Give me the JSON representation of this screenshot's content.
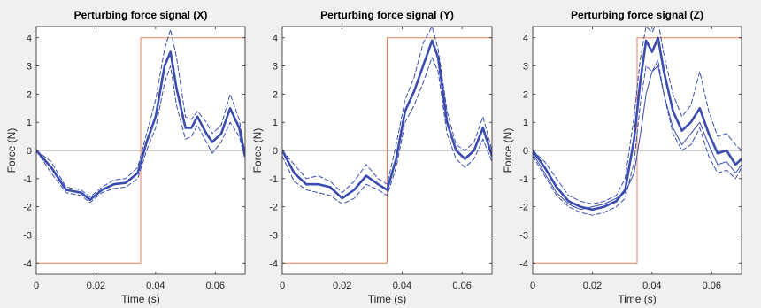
{
  "figure": {
    "background": "#f0f0f0"
  },
  "chart_data": [
    {
      "type": "line",
      "title": "Perturbing force signal (X)",
      "xlabel": "Time (s)",
      "ylabel": "Force (N)",
      "xlim": [
        0,
        0.07
      ],
      "ylim": [
        -4.4,
        4.4
      ],
      "xticks": [
        "0",
        "0.02",
        "0.04",
        "0.06"
      ],
      "xtick_values": [
        0,
        0.02,
        0.04,
        0.06
      ],
      "yticks": [
        "-4",
        "-3",
        "-2",
        "-1",
        "0",
        "1",
        "2",
        "3",
        "4"
      ],
      "ytick_values": [
        -4,
        -3,
        -2,
        -1,
        0,
        1,
        2,
        3,
        4
      ],
      "grid": false,
      "zero_line": true,
      "series": [
        {
          "role": "reference",
          "style": "solid",
          "width": 1,
          "color": "#e5825a",
          "x": [
            0,
            0,
            0.035,
            0.035,
            0.07,
            0.07
          ],
          "y": [
            0,
            -4,
            -4,
            4,
            4,
            0
          ]
        },
        {
          "role": "upper",
          "style": "dashed",
          "width": 1,
          "color": "#3a4cb0",
          "x": [
            0,
            0.005,
            0.01,
            0.015,
            0.018,
            0.022,
            0.026,
            0.03,
            0.034,
            0.037,
            0.04,
            0.043,
            0.045,
            0.047,
            0.05,
            0.052,
            0.054,
            0.057,
            0.059,
            0.062,
            0.065,
            0.068,
            0.07
          ],
          "y": [
            0,
            -0.4,
            -1.3,
            -1.4,
            -1.65,
            -1.3,
            -1.05,
            -1.0,
            -0.6,
            0.6,
            1.8,
            3.6,
            4.3,
            3.3,
            1.2,
            1.1,
            1.4,
            1.0,
            0.6,
            0.9,
            2.0,
            1.1,
            -0.1
          ]
        },
        {
          "role": "mean",
          "style": "solid",
          "width": 2.6,
          "color": "#3a4cb0",
          "x": [
            0,
            0.005,
            0.01,
            0.015,
            0.018,
            0.022,
            0.026,
            0.03,
            0.034,
            0.037,
            0.04,
            0.043,
            0.045,
            0.047,
            0.05,
            0.052,
            0.054,
            0.057,
            0.059,
            0.062,
            0.065,
            0.068,
            0.07
          ],
          "y": [
            0,
            -0.6,
            -1.4,
            -1.5,
            -1.75,
            -1.4,
            -1.2,
            -1.15,
            -0.8,
            0.3,
            1.2,
            3.0,
            3.5,
            2.2,
            0.8,
            0.8,
            1.2,
            0.6,
            0.3,
            0.6,
            1.5,
            0.8,
            -0.2
          ]
        },
        {
          "role": "lower",
          "style": "dashed",
          "width": 1,
          "color": "#3a4cb0",
          "x": [
            0,
            0.005,
            0.01,
            0.015,
            0.018,
            0.022,
            0.026,
            0.03,
            0.034,
            0.037,
            0.04,
            0.043,
            0.045,
            0.047,
            0.05,
            0.052,
            0.054,
            0.057,
            0.059,
            0.062,
            0.065,
            0.068,
            0.07
          ],
          "y": [
            0,
            -0.8,
            -1.5,
            -1.6,
            -1.85,
            -1.5,
            -1.35,
            -1.3,
            -1.0,
            0.0,
            0.8,
            2.4,
            3.0,
            1.6,
            0.4,
            0.5,
            0.9,
            0.3,
            -0.1,
            0.3,
            1.0,
            0.5,
            -0.3
          ]
        }
      ]
    },
    {
      "type": "line",
      "title": "Perturbing force signal (Y)",
      "xlabel": "Time (s)",
      "ylabel": "Force (N)",
      "xlim": [
        0,
        0.07
      ],
      "ylim": [
        -4.4,
        4.4
      ],
      "xticks": [
        "0",
        "0.02",
        "0.04",
        "0.06"
      ],
      "xtick_values": [
        0,
        0.02,
        0.04,
        0.06
      ],
      "yticks": [
        "-4",
        "-3",
        "-2",
        "-1",
        "0",
        "1",
        "2",
        "3",
        "4"
      ],
      "ytick_values": [
        -4,
        -3,
        -2,
        -1,
        0,
        1,
        2,
        3,
        4
      ],
      "grid": false,
      "zero_line": true,
      "series": [
        {
          "role": "reference",
          "style": "solid",
          "width": 1,
          "color": "#e5825a",
          "x": [
            0,
            0,
            0.035,
            0.035,
            0.07,
            0.07
          ],
          "y": [
            0,
            -4,
            -4,
            4,
            4,
            0
          ]
        },
        {
          "role": "upper",
          "style": "dashed",
          "width": 1,
          "color": "#3a4cb0",
          "x": [
            0,
            0.004,
            0.008,
            0.012,
            0.016,
            0.02,
            0.024,
            0.028,
            0.032,
            0.035,
            0.038,
            0.041,
            0.044,
            0.047,
            0.05,
            0.052,
            0.055,
            0.058,
            0.061,
            0.064,
            0.067,
            0.07
          ],
          "y": [
            0.0,
            -0.5,
            -1.0,
            -0.9,
            -1.1,
            -1.5,
            -1.1,
            -0.5,
            -1.0,
            -1.2,
            0.2,
            1.8,
            2.6,
            3.8,
            4.4,
            3.6,
            1.4,
            0.2,
            0.0,
            0.3,
            1.2,
            0.0
          ]
        },
        {
          "role": "mean",
          "style": "solid",
          "width": 2.6,
          "color": "#3a4cb0",
          "x": [
            0,
            0.004,
            0.008,
            0.012,
            0.016,
            0.02,
            0.024,
            0.028,
            0.032,
            0.035,
            0.038,
            0.041,
            0.044,
            0.047,
            0.05,
            0.052,
            0.055,
            0.058,
            0.061,
            0.064,
            0.067,
            0.07
          ],
          "y": [
            0.0,
            -0.8,
            -1.2,
            -1.2,
            -1.3,
            -1.7,
            -1.4,
            -0.9,
            -1.2,
            -1.4,
            -0.3,
            1.4,
            2.1,
            3.0,
            3.9,
            3.3,
            1.0,
            0.0,
            -0.3,
            0.0,
            0.8,
            -0.2
          ]
        },
        {
          "role": "lower",
          "style": "dashed",
          "width": 1,
          "color": "#3a4cb0",
          "x": [
            0,
            0.004,
            0.008,
            0.012,
            0.016,
            0.02,
            0.024,
            0.028,
            0.032,
            0.035,
            0.038,
            0.041,
            0.044,
            0.047,
            0.05,
            0.052,
            0.055,
            0.058,
            0.061,
            0.064,
            0.067,
            0.07
          ],
          "y": [
            -0.2,
            -1.1,
            -1.4,
            -1.5,
            -1.6,
            -1.9,
            -1.7,
            -1.2,
            -1.4,
            -1.6,
            -0.6,
            1.0,
            1.6,
            2.4,
            3.3,
            2.8,
            0.6,
            -0.3,
            -0.6,
            -0.3,
            0.4,
            -0.4
          ]
        }
      ]
    },
    {
      "type": "line",
      "title": "Perturbing force signal (Z)",
      "xlabel": "Time (s)",
      "ylabel": "Force (N)",
      "xlim": [
        0,
        0.07
      ],
      "ylim": [
        -4.4,
        4.4
      ],
      "xticks": [
        "0",
        "0.02",
        "0.04",
        "0.06"
      ],
      "xtick_values": [
        0,
        0.02,
        0.04,
        0.06
      ],
      "yticks": [
        "-4",
        "-3",
        "-2",
        "-1",
        "0",
        "1",
        "2",
        "3",
        "4"
      ],
      "ytick_values": [
        -4,
        -3,
        -2,
        -1,
        0,
        1,
        2,
        3,
        4
      ],
      "grid": false,
      "zero_line": true,
      "series": [
        {
          "role": "reference",
          "style": "solid",
          "width": 1,
          "color": "#e5825a",
          "x": [
            0,
            0,
            0.035,
            0.035,
            0.07,
            0.07
          ],
          "y": [
            0,
            -4,
            -4,
            4,
            4,
            0
          ]
        },
        {
          "role": "upper",
          "style": "dashed",
          "width": 1,
          "color": "#3a4cb0",
          "x": [
            0,
            0.004,
            0.008,
            0.012,
            0.016,
            0.02,
            0.024,
            0.028,
            0.031,
            0.034,
            0.036,
            0.038,
            0.04,
            0.042,
            0.044,
            0.047,
            0.05,
            0.053,
            0.056,
            0.059,
            0.062,
            0.065,
            0.068,
            0.07
          ],
          "y": [
            0.0,
            -0.4,
            -1.0,
            -1.6,
            -1.8,
            -1.9,
            -1.8,
            -1.6,
            -1.0,
            1.2,
            3.2,
            4.4,
            4.2,
            4.6,
            3.4,
            2.0,
            1.2,
            1.6,
            2.8,
            1.4,
            0.5,
            0.6,
            0.2,
            0.0
          ]
        },
        {
          "role": "mean",
          "style": "solid",
          "width": 2.6,
          "color": "#3a4cb0",
          "x": [
            0,
            0.004,
            0.008,
            0.012,
            0.016,
            0.02,
            0.024,
            0.028,
            0.031,
            0.034,
            0.036,
            0.038,
            0.04,
            0.042,
            0.044,
            0.047,
            0.05,
            0.053,
            0.056,
            0.059,
            0.062,
            0.065,
            0.068,
            0.07
          ],
          "y": [
            0.0,
            -0.6,
            -1.3,
            -1.8,
            -2.0,
            -2.1,
            -2.0,
            -1.8,
            -1.4,
            0.4,
            2.4,
            3.9,
            3.5,
            4.0,
            2.8,
            1.4,
            0.7,
            1.0,
            1.5,
            0.6,
            -0.1,
            0.0,
            -0.5,
            -0.3
          ]
        },
        {
          "role": "lower",
          "style": "dashed",
          "width": 1,
          "color": "#3a4cb0",
          "x": [
            0,
            0.004,
            0.008,
            0.012,
            0.016,
            0.02,
            0.024,
            0.028,
            0.031,
            0.034,
            0.036,
            0.038,
            0.04,
            0.042,
            0.044,
            0.047,
            0.05,
            0.053,
            0.056,
            0.059,
            0.062,
            0.065,
            0.068,
            0.07
          ],
          "y": [
            -0.2,
            -0.9,
            -1.6,
            -2.0,
            -2.2,
            -2.3,
            -2.2,
            -2.0,
            -1.7,
            -0.4,
            1.6,
            3.0,
            2.8,
            3.2,
            2.0,
            0.6,
            0.0,
            0.2,
            0.8,
            -0.2,
            -0.8,
            -0.7,
            -1.0,
            -0.6
          ]
        },
        {
          "role": "individual",
          "style": "solid",
          "width": 1,
          "color": "#3a4cb0",
          "x": [
            0,
            0.004,
            0.008,
            0.012,
            0.016,
            0.02,
            0.024,
            0.028,
            0.031,
            0.034,
            0.036,
            0.038,
            0.04,
            0.042,
            0.044,
            0.047,
            0.05,
            0.053,
            0.056,
            0.059,
            0.062,
            0.065,
            0.068,
            0.07
          ],
          "y": [
            -0.1,
            -0.8,
            -1.5,
            -1.9,
            -2.1,
            -2.0,
            -1.9,
            -1.7,
            -1.5,
            -0.8,
            0.5,
            2.0,
            2.8,
            3.0,
            2.0,
            0.8,
            0.2,
            0.6,
            1.0,
            0.2,
            -0.5,
            -0.4,
            -0.8,
            -0.5
          ]
        }
      ]
    }
  ]
}
